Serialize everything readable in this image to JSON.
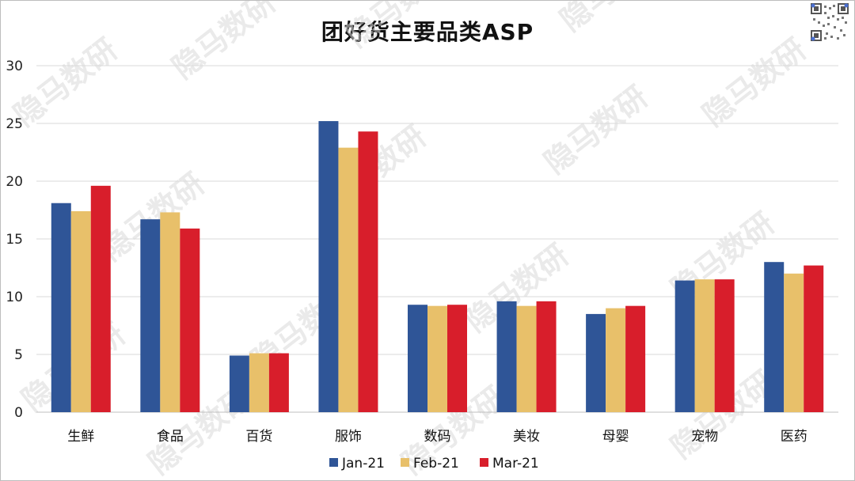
{
  "chart_data": {
    "type": "bar",
    "title": "团好货主要品类ASP",
    "categories": [
      "生鲜",
      "食品",
      "百货",
      "服饰",
      "数码",
      "美妆",
      "母婴",
      "宠物",
      "医药"
    ],
    "series": [
      {
        "name": "Jan-21",
        "color": "#2f5597",
        "values": [
          18.1,
          16.7,
          4.9,
          25.2,
          9.3,
          9.6,
          8.5,
          11.4,
          13.0
        ]
      },
      {
        "name": "Feb-21",
        "color": "#e8c06a",
        "values": [
          17.4,
          17.3,
          5.1,
          22.9,
          9.2,
          9.2,
          9.0,
          11.5,
          12.0
        ]
      },
      {
        "name": "Mar-21",
        "color": "#d81e2b",
        "values": [
          19.6,
          15.9,
          5.1,
          24.3,
          9.3,
          9.6,
          9.2,
          11.5,
          12.7
        ]
      }
    ],
    "yticks": [
      "0",
      "5",
      "10",
      "15",
      "20",
      "25",
      "30"
    ],
    "ylim": [
      0,
      30
    ],
    "grid": true,
    "legend": "bottom"
  },
  "watermark": "隐马数研"
}
